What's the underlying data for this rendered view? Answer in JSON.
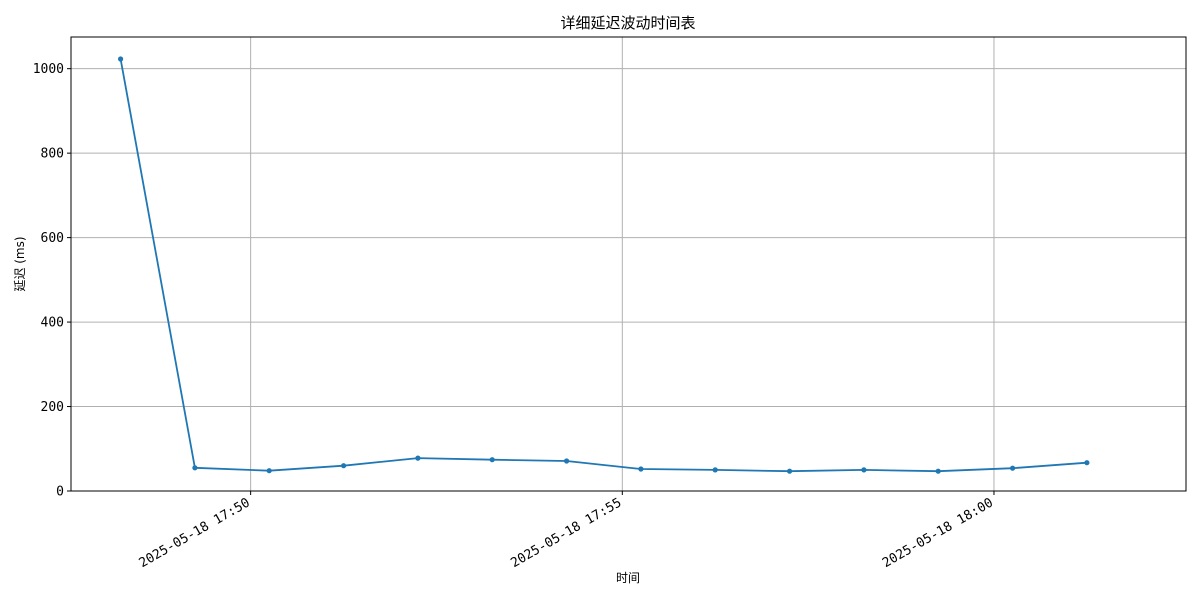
{
  "chart_data": {
    "type": "line",
    "title": "详细延迟波动时间表",
    "xlabel": "时间",
    "ylabel": "延迟 (ms)",
    "x_type": "datetime",
    "x": [
      "2025-05-18 17:48:15",
      "2025-05-18 17:49:15",
      "2025-05-18 17:50:15",
      "2025-05-18 17:51:15",
      "2025-05-18 17:52:15",
      "2025-05-18 17:53:15",
      "2025-05-18 17:54:15",
      "2025-05-18 17:55:15",
      "2025-05-18 17:56:15",
      "2025-05-18 17:57:15",
      "2025-05-18 17:58:15",
      "2025-05-18 17:59:15",
      "2025-05-18 18:00:15",
      "2025-05-18 18:01:15"
    ],
    "series": [
      {
        "color": "#1f77b4",
        "values": [
          1023,
          55,
          48,
          60,
          78,
          74,
          71,
          52,
          50,
          47,
          50,
          47,
          54,
          67
        ]
      }
    ],
    "xlim": [
      "2025-05-18 17:47:35",
      "2025-05-18 18:02:35"
    ],
    "ylim": [
      0,
      1075
    ],
    "x_ticks": [
      {
        "value": "2025-05-18 17:50:00",
        "label": "2025-05-18 17:50"
      },
      {
        "value": "2025-05-18 17:55:00",
        "label": "2025-05-18 17:55"
      },
      {
        "value": "2025-05-18 18:00:00",
        "label": "2025-05-18 18:00"
      }
    ],
    "y_ticks": [
      0,
      200,
      400,
      600,
      800,
      1000
    ],
    "x_tick_rotation_deg": 30,
    "grid": true,
    "grid_color": "#b0b0b0",
    "legend": "none"
  }
}
